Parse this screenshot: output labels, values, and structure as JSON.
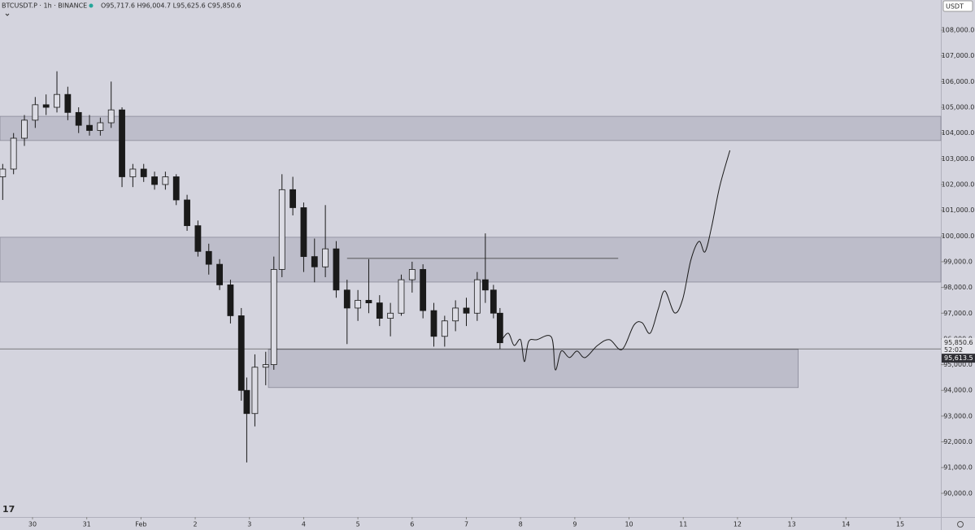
{
  "header": {
    "symbol": "BTCUSDT.P · 1h · BINANCE",
    "ohlc": "O95,717.6 H96,004.7 L95,625.6 C95,850.6",
    "currency": "USDT"
  },
  "chart_data": {
    "type": "candlestick",
    "x": [
      -0.55,
      -0.35,
      -0.15,
      0.05,
      0.25,
      0.45,
      0.65,
      0.85,
      1.05,
      1.25,
      1.45,
      1.65,
      1.85,
      2.05,
      2.25,
      2.45,
      2.65,
      2.85,
      3.05,
      3.25,
      3.45,
      3.65,
      3.85,
      3.95,
      4.1,
      4.3,
      4.45,
      4.6,
      4.8,
      5.0,
      5.2,
      5.4,
      5.6,
      5.8,
      6.0,
      6.2,
      6.4,
      6.6,
      6.8,
      7.0,
      7.2,
      7.4,
      7.6,
      7.8,
      8.0,
      8.2,
      8.35,
      8.5,
      8.62
    ],
    "open": [
      102300,
      102600,
      103800,
      104500,
      105100,
      105000,
      105500,
      104800,
      104300,
      104100,
      104400,
      104900,
      102300,
      102600,
      102300,
      102000,
      102300,
      101400,
      100400,
      99400,
      98900,
      98100,
      96900,
      94000,
      93100,
      94900,
      95000,
      98700,
      101800,
      101100,
      99200,
      98800,
      99500,
      97900,
      97200,
      97500,
      97400,
      96800,
      97000,
      98300,
      98700,
      97100,
      96100,
      96700,
      97200,
      97000,
      98300,
      97900,
      97000
    ],
    "high": [
      102800,
      104000,
      104700,
      105400,
      105500,
      106400,
      105800,
      105000,
      104700,
      104600,
      106000,
      105000,
      102800,
      102800,
      102500,
      102500,
      102400,
      101600,
      100600,
      99700,
      99100,
      98300,
      97200,
      94500,
      95400,
      95500,
      99200,
      102400,
      102300,
      101300,
      99900,
      101200,
      99800,
      98300,
      97900,
      99100,
      97700,
      97400,
      98500,
      99000,
      98900,
      97400,
      96900,
      97500,
      97600,
      98600,
      100100,
      98100,
      97200
    ],
    "low": [
      101400,
      102400,
      103500,
      104200,
      104700,
      104800,
      104500,
      104000,
      103900,
      103900,
      104200,
      101900,
      101900,
      102100,
      101800,
      101800,
      101200,
      100200,
      99200,
      98500,
      97900,
      96600,
      93600,
      91200,
      92600,
      94200,
      94800,
      98400,
      100800,
      98600,
      98200,
      98400,
      97600,
      95800,
      96700,
      97000,
      96500,
      96100,
      96900,
      97800,
      96800,
      95700,
      95700,
      96300,
      96500,
      96700,
      97400,
      96800,
      95600
    ],
    "close": [
      102600,
      103800,
      104500,
      105100,
      105000,
      105500,
      104800,
      104300,
      104100,
      104400,
      104900,
      102300,
      102600,
      102300,
      102000,
      102300,
      101400,
      100400,
      99400,
      98900,
      98100,
      96900,
      94000,
      93100,
      94900,
      95000,
      98700,
      101800,
      101100,
      99200,
      98800,
      99500,
      97900,
      97200,
      97500,
      97400,
      96800,
      97000,
      98300,
      98700,
      97100,
      96100,
      96700,
      97200,
      97000,
      98300,
      97900,
      97000,
      95850.6
    ],
    "up_color": "#dcdce4",
    "down_color": "#1a1a1a",
    "zones": [
      {
        "y": [
          103710,
          104650
        ]
      },
      {
        "y": [
          98210,
          99950
        ]
      },
      {
        "y": [
          94110,
          95590
        ],
        "x": [
          4.35,
          14.12
        ]
      }
    ],
    "level": {
      "value": 99130,
      "x": [
        5.8,
        10.8
      ]
    },
    "projection": {
      "x": [
        8.62,
        8.77,
        8.88,
        9.0,
        9.07,
        9.15,
        9.3,
        9.57,
        9.64,
        9.75,
        9.9,
        10.04,
        10.19,
        10.42,
        10.64,
        10.87,
        11.09,
        11.24,
        11.39,
        11.54,
        11.66,
        11.84,
        11.99,
        12.14,
        12.29,
        12.4,
        12.52,
        12.67,
        12.86
      ],
      "values": [
        95850.6,
        96222,
        95748,
        95970,
        95117,
        95906,
        95970,
        96064,
        94801,
        95527,
        95275,
        95527,
        95275,
        95748,
        95970,
        95590,
        96538,
        96633,
        96222,
        97169,
        97864,
        97012,
        97548,
        99064,
        99790,
        99380,
        100327,
        101906,
        103327
      ]
    },
    "last_price": {
      "value": 95613.5,
      "label": "95,613.5"
    },
    "close_label": {
      "value": 95850.6,
      "label": "95,850.6",
      "countdown": "52:02"
    },
    "xlim": [
      -0.6,
      16.75
    ],
    "ylim": [
      89080,
      109170
    ],
    "xticks": [
      {
        "value": 0,
        "label": "30"
      },
      {
        "value": 1,
        "label": "31"
      },
      {
        "value": 2,
        "label": "Feb"
      },
      {
        "value": 3,
        "label": "2"
      },
      {
        "value": 4,
        "label": "3"
      },
      {
        "value": 5,
        "label": "4"
      },
      {
        "value": 6,
        "label": "5"
      },
      {
        "value": 7,
        "label": "6"
      },
      {
        "value": 8,
        "label": "7"
      },
      {
        "value": 9,
        "label": "8"
      },
      {
        "value": 10,
        "label": "9"
      },
      {
        "value": 11,
        "label": "10"
      },
      {
        "value": 12,
        "label": "11"
      },
      {
        "value": 13,
        "label": "12"
      },
      {
        "value": 14,
        "label": "13"
      },
      {
        "value": 15,
        "label": "14"
      },
      {
        "value": 16,
        "label": "15"
      }
    ],
    "yticks": [
      {
        "value": 90000,
        "label": "90,000.0"
      },
      {
        "value": 91000,
        "label": "91,000.0"
      },
      {
        "value": 92000,
        "label": "92,000.0"
      },
      {
        "value": 93000,
        "label": "93,000.0"
      },
      {
        "value": 94000,
        "label": "94,000.0"
      },
      {
        "value": 95000,
        "label": "95,000.0"
      },
      {
        "value": 96000,
        "label": "96,000.0"
      },
      {
        "value": 97000,
        "label": "97,000.0"
      },
      {
        "value": 98000,
        "label": "98,000.0"
      },
      {
        "value": 99000,
        "label": "99,000.0"
      },
      {
        "value": 100000,
        "label": "100,000.0"
      },
      {
        "value": 101000,
        "label": "101,000.0"
      },
      {
        "value": 102000,
        "label": "102,000.0"
      },
      {
        "value": 103000,
        "label": "103,000.0"
      },
      {
        "value": 104000,
        "label": "104,000.0"
      },
      {
        "value": 105000,
        "label": "105,000.0"
      },
      {
        "value": 106000,
        "label": "106,000.0"
      },
      {
        "value": 107000,
        "label": "107,000.0"
      },
      {
        "value": 108000,
        "label": "108,000.0"
      }
    ]
  }
}
